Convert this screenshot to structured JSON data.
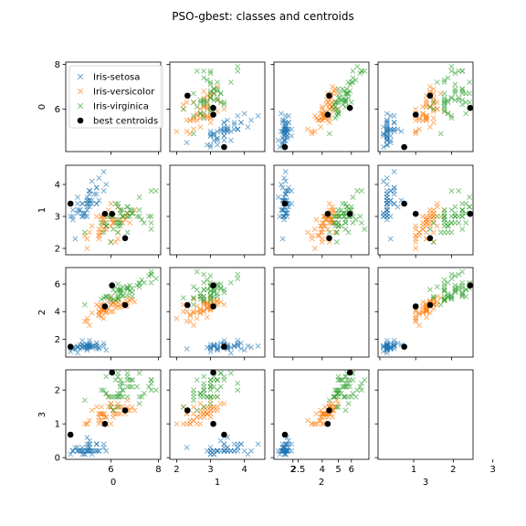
{
  "chart_data": {
    "type": "scatter",
    "title": "PSO-gbest: classes and centroids",
    "variables": [
      "0",
      "1",
      "2",
      "3"
    ],
    "axis_ranges": [
      [
        4.1,
        8.1
      ],
      [
        1.8,
        4.6
      ],
      [
        0.7,
        7.2
      ],
      [
        -0.05,
        2.6
      ]
    ],
    "ticks": [
      [
        6,
        8
      ],
      [
        2,
        3,
        4
      ],
      [
        2,
        4,
        6
      ],
      [
        0,
        1,
        2,
        3
      ]
    ],
    "diag_ticks": [
      [
        2.5,
        5.0
      ],
      [
        1,
        2,
        3
      ]
    ],
    "diag_x_ranges": {
      "2": [
        1.0,
        6.9
      ],
      "3": [
        0.1,
        2.5
      ]
    },
    "legend_position": "upper left of top-left panel",
    "colors": {
      "setosa": "#1f77b4",
      "versicolor": "#ff7f0e",
      "virginica": "#2ca02c",
      "centroid": "#000000"
    },
    "series": [
      {
        "name": "Iris-setosa",
        "marker": "x",
        "points": [
          [
            5.1,
            3.5,
            1.4,
            0.2
          ],
          [
            4.9,
            3.0,
            1.4,
            0.2
          ],
          [
            4.7,
            3.2,
            1.3,
            0.2
          ],
          [
            4.6,
            3.1,
            1.5,
            0.2
          ],
          [
            5.0,
            3.6,
            1.4,
            0.2
          ],
          [
            5.4,
            3.9,
            1.7,
            0.4
          ],
          [
            4.6,
            3.4,
            1.4,
            0.3
          ],
          [
            5.0,
            3.4,
            1.5,
            0.2
          ],
          [
            4.4,
            2.9,
            1.4,
            0.2
          ],
          [
            4.9,
            3.1,
            1.5,
            0.1
          ],
          [
            5.4,
            3.7,
            1.5,
            0.2
          ],
          [
            4.8,
            3.4,
            1.6,
            0.2
          ],
          [
            4.8,
            3.0,
            1.4,
            0.1
          ],
          [
            4.3,
            3.0,
            1.1,
            0.1
          ],
          [
            5.8,
            4.0,
            1.2,
            0.2
          ],
          [
            5.7,
            4.4,
            1.5,
            0.4
          ],
          [
            5.4,
            3.9,
            1.3,
            0.4
          ],
          [
            5.1,
            3.5,
            1.4,
            0.3
          ],
          [
            5.7,
            3.8,
            1.7,
            0.3
          ],
          [
            5.1,
            3.8,
            1.5,
            0.3
          ],
          [
            5.4,
            3.4,
            1.7,
            0.2
          ],
          [
            5.1,
            3.7,
            1.5,
            0.4
          ],
          [
            4.6,
            3.6,
            1.0,
            0.2
          ],
          [
            5.1,
            3.3,
            1.7,
            0.5
          ],
          [
            4.8,
            3.4,
            1.9,
            0.2
          ],
          [
            5.0,
            3.0,
            1.6,
            0.2
          ],
          [
            5.0,
            3.4,
            1.6,
            0.4
          ],
          [
            5.2,
            3.5,
            1.5,
            0.2
          ],
          [
            5.2,
            3.4,
            1.4,
            0.2
          ],
          [
            4.7,
            3.2,
            1.6,
            0.2
          ],
          [
            4.8,
            3.1,
            1.6,
            0.2
          ],
          [
            5.4,
            3.4,
            1.5,
            0.4
          ],
          [
            5.2,
            4.1,
            1.5,
            0.1
          ],
          [
            5.5,
            4.2,
            1.4,
            0.2
          ],
          [
            4.9,
            3.1,
            1.5,
            0.1
          ],
          [
            5.0,
            3.2,
            1.2,
            0.2
          ],
          [
            5.5,
            3.5,
            1.3,
            0.2
          ],
          [
            4.4,
            3.0,
            1.3,
            0.2
          ],
          [
            5.1,
            3.4,
            1.5,
            0.2
          ],
          [
            5.0,
            3.5,
            1.3,
            0.3
          ],
          [
            4.5,
            2.3,
            1.3,
            0.3
          ],
          [
            4.4,
            3.2,
            1.3,
            0.2
          ],
          [
            5.0,
            3.5,
            1.6,
            0.6
          ],
          [
            5.1,
            3.8,
            1.9,
            0.4
          ],
          [
            4.8,
            3.0,
            1.4,
            0.3
          ],
          [
            5.1,
            3.8,
            1.6,
            0.2
          ],
          [
            4.6,
            3.2,
            1.4,
            0.2
          ],
          [
            5.3,
            3.7,
            1.5,
            0.2
          ],
          [
            5.0,
            3.3,
            1.4,
            0.2
          ]
        ]
      },
      {
        "name": "Iris-versicolor",
        "marker": "x",
        "points": [
          [
            7.0,
            3.2,
            4.7,
            1.4
          ],
          [
            6.4,
            3.2,
            4.5,
            1.5
          ],
          [
            6.9,
            3.1,
            4.9,
            1.5
          ],
          [
            5.5,
            2.3,
            4.0,
            1.3
          ],
          [
            6.5,
            2.8,
            4.6,
            1.5
          ],
          [
            5.7,
            2.8,
            4.5,
            1.3
          ],
          [
            6.3,
            3.3,
            4.7,
            1.6
          ],
          [
            4.9,
            2.4,
            3.3,
            1.0
          ],
          [
            6.6,
            2.9,
            4.6,
            1.3
          ],
          [
            5.2,
            2.7,
            3.9,
            1.4
          ],
          [
            5.0,
            2.0,
            3.5,
            1.0
          ],
          [
            5.9,
            3.0,
            4.2,
            1.5
          ],
          [
            6.0,
            2.2,
            4.0,
            1.0
          ],
          [
            6.1,
            2.9,
            4.7,
            1.4
          ],
          [
            5.6,
            2.9,
            3.6,
            1.3
          ],
          [
            6.7,
            3.1,
            4.4,
            1.4
          ],
          [
            5.6,
            3.0,
            4.5,
            1.5
          ],
          [
            5.8,
            2.7,
            4.1,
            1.0
          ],
          [
            6.2,
            2.2,
            4.5,
            1.5
          ],
          [
            5.6,
            2.5,
            3.9,
            1.1
          ],
          [
            5.9,
            3.2,
            4.8,
            1.8
          ],
          [
            6.1,
            2.8,
            4.0,
            1.3
          ],
          [
            6.3,
            2.5,
            4.9,
            1.5
          ],
          [
            6.1,
            2.8,
            4.7,
            1.2
          ],
          [
            6.4,
            2.9,
            4.3,
            1.3
          ],
          [
            6.6,
            3.0,
            4.4,
            1.4
          ],
          [
            6.8,
            2.8,
            4.8,
            1.4
          ],
          [
            6.7,
            3.0,
            5.0,
            1.7
          ],
          [
            6.0,
            2.9,
            4.5,
            1.5
          ],
          [
            5.7,
            2.6,
            3.5,
            1.0
          ],
          [
            5.5,
            2.4,
            3.8,
            1.1
          ],
          [
            5.5,
            2.4,
            3.7,
            1.0
          ],
          [
            5.8,
            2.7,
            3.9,
            1.2
          ],
          [
            6.0,
            2.7,
            5.1,
            1.6
          ],
          [
            5.4,
            3.0,
            4.5,
            1.5
          ],
          [
            6.0,
            3.4,
            4.5,
            1.6
          ],
          [
            6.7,
            3.1,
            4.7,
            1.5
          ],
          [
            6.3,
            2.3,
            4.4,
            1.3
          ],
          [
            5.6,
            3.0,
            4.1,
            1.3
          ],
          [
            5.5,
            2.5,
            4.0,
            1.3
          ],
          [
            5.5,
            2.6,
            4.4,
            1.2
          ],
          [
            6.1,
            3.0,
            4.6,
            1.4
          ],
          [
            5.8,
            2.6,
            4.0,
            1.2
          ],
          [
            5.0,
            2.3,
            3.3,
            1.0
          ],
          [
            5.6,
            2.7,
            4.2,
            1.3
          ],
          [
            5.7,
            3.0,
            4.2,
            1.2
          ],
          [
            5.7,
            2.9,
            4.2,
            1.3
          ],
          [
            6.2,
            2.9,
            4.3,
            1.3
          ],
          [
            5.1,
            2.5,
            3.0,
            1.1
          ],
          [
            5.7,
            2.8,
            4.1,
            1.3
          ]
        ]
      },
      {
        "name": "Iris-virginica",
        "marker": "x",
        "points": [
          [
            6.3,
            3.3,
            6.0,
            2.5
          ],
          [
            5.8,
            2.7,
            5.1,
            1.9
          ],
          [
            7.1,
            3.0,
            5.9,
            2.1
          ],
          [
            6.3,
            2.9,
            5.6,
            1.8
          ],
          [
            6.5,
            3.0,
            5.8,
            2.2
          ],
          [
            7.6,
            3.0,
            6.6,
            2.1
          ],
          [
            4.9,
            2.5,
            4.5,
            1.7
          ],
          [
            7.3,
            2.9,
            6.3,
            1.8
          ],
          [
            6.7,
            2.5,
            5.8,
            1.8
          ],
          [
            7.2,
            3.6,
            6.1,
            2.5
          ],
          [
            6.5,
            3.2,
            5.1,
            2.0
          ],
          [
            6.4,
            2.7,
            5.3,
            1.9
          ],
          [
            6.8,
            3.0,
            5.5,
            2.1
          ],
          [
            5.7,
            2.5,
            5.0,
            2.0
          ],
          [
            5.8,
            2.8,
            5.1,
            2.4
          ],
          [
            6.4,
            3.2,
            5.3,
            2.3
          ],
          [
            6.5,
            3.0,
            5.5,
            1.8
          ],
          [
            7.7,
            3.8,
            6.7,
            2.2
          ],
          [
            7.7,
            2.6,
            6.9,
            2.3
          ],
          [
            6.0,
            2.2,
            5.0,
            1.5
          ],
          [
            6.9,
            3.2,
            5.7,
            2.3
          ],
          [
            5.6,
            2.8,
            4.9,
            2.0
          ],
          [
            7.7,
            2.8,
            6.7,
            2.0
          ],
          [
            6.3,
            2.7,
            4.9,
            1.8
          ],
          [
            6.7,
            3.3,
            5.7,
            2.1
          ],
          [
            7.2,
            3.2,
            6.0,
            1.8
          ],
          [
            6.2,
            2.8,
            4.8,
            1.8
          ],
          [
            6.1,
            3.0,
            4.9,
            1.8
          ],
          [
            6.4,
            2.8,
            5.6,
            2.1
          ],
          [
            7.2,
            3.0,
            5.8,
            1.6
          ],
          [
            7.4,
            2.8,
            6.1,
            1.9
          ],
          [
            7.9,
            3.8,
            6.4,
            2.0
          ],
          [
            6.4,
            2.8,
            5.6,
            2.2
          ],
          [
            6.3,
            2.8,
            5.1,
            1.5
          ],
          [
            6.1,
            2.6,
            5.6,
            1.4
          ],
          [
            7.7,
            3.0,
            6.1,
            2.3
          ],
          [
            6.3,
            3.4,
            5.6,
            2.4
          ],
          [
            6.4,
            3.1,
            5.5,
            1.8
          ],
          [
            6.0,
            3.0,
            4.8,
            1.8
          ],
          [
            6.9,
            3.1,
            5.4,
            2.1
          ],
          [
            6.7,
            3.1,
            5.6,
            2.4
          ],
          [
            6.9,
            3.1,
            5.1,
            2.3
          ],
          [
            5.8,
            2.7,
            5.1,
            1.9
          ],
          [
            6.8,
            3.2,
            5.9,
            2.3
          ],
          [
            6.7,
            3.3,
            5.7,
            2.5
          ],
          [
            6.7,
            3.0,
            5.2,
            2.3
          ],
          [
            6.3,
            2.5,
            5.0,
            1.9
          ],
          [
            6.5,
            3.0,
            5.2,
            2.0
          ],
          [
            6.2,
            3.4,
            5.4,
            2.3
          ],
          [
            5.9,
            3.0,
            5.1,
            1.8
          ]
        ]
      },
      {
        "name": "best centroids",
        "marker": "o",
        "points": [
          [
            6.05,
            3.08,
            5.9,
            2.52
          ],
          [
            5.75,
            3.08,
            4.38,
            1.0
          ],
          [
            4.3,
            3.4,
            1.45,
            0.68
          ],
          [
            6.6,
            2.32,
            4.48,
            1.4
          ]
        ]
      }
    ]
  }
}
